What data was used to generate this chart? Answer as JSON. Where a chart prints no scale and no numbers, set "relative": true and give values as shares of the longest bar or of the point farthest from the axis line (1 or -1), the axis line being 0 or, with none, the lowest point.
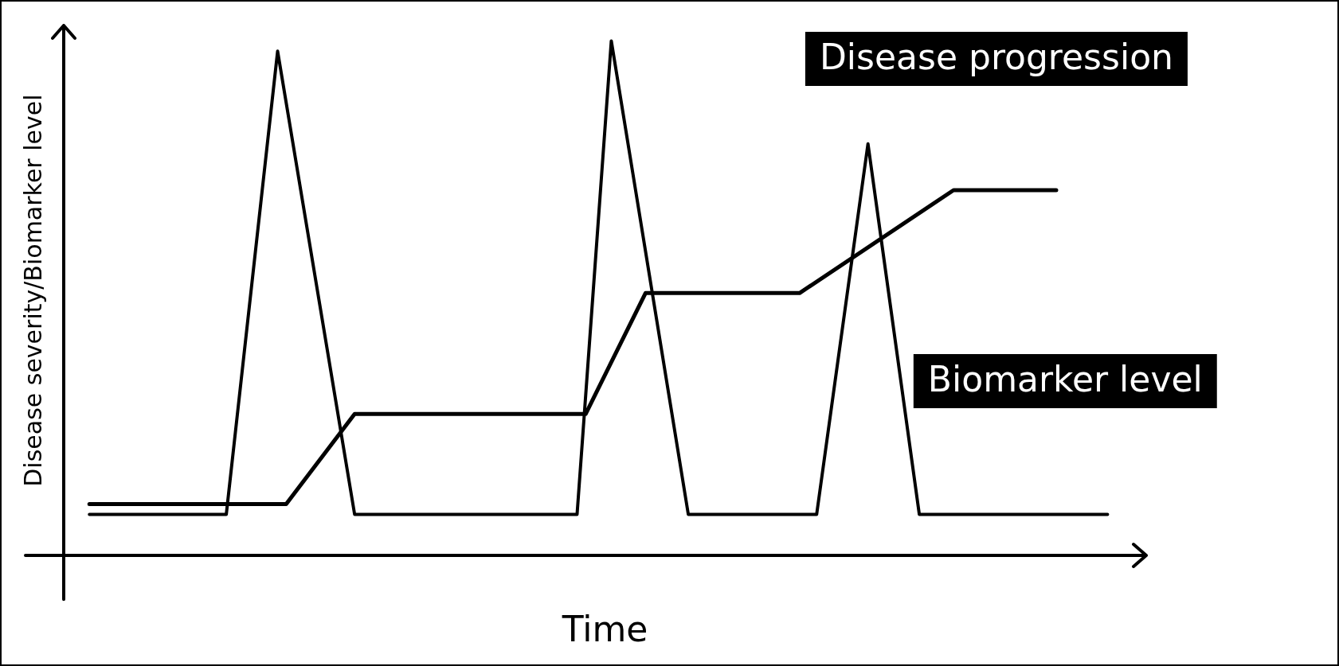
{
  "chart_data": {
    "type": "line",
    "relative": true,
    "xlabel": "Time",
    "ylabel": "Disease severity/Biomarker level",
    "tick_labels": false,
    "grid": false,
    "legend": false,
    "marker": "none",
    "line_style": "solid",
    "categories": [
      null,
      null,
      null,
      null,
      null,
      null,
      null,
      null,
      null,
      null,
      null,
      null,
      null,
      null,
      null,
      null,
      null,
      null,
      null,
      null,
      null,
      null,
      null,
      null,
      null,
      null,
      null,
      null,
      null,
      null,
      null,
      null,
      null,
      null,
      null,
      null,
      null,
      null,
      null,
      null,
      null,
      null,
      null,
      null,
      null,
      null,
      null,
      null,
      null,
      null,
      null,
      null,
      null,
      null,
      null,
      null,
      null,
      null,
      null,
      null,
      null,
      null,
      null,
      null,
      null,
      null,
      null,
      null,
      null,
      null,
      null,
      null,
      null,
      null,
      null,
      null,
      null,
      null,
      null,
      null,
      null,
      null,
      null,
      null,
      null,
      null,
      null,
      null,
      null,
      null,
      null,
      null,
      null,
      null,
      null,
      null,
      null,
      null,
      null,
      null,
      null,
      null,
      null,
      null,
      null,
      null,
      null,
      null,
      null,
      null,
      null,
      null,
      null,
      null,
      null,
      null,
      null,
      null,
      null,
      null
    ],
    "series": [
      {
        "name": "Disease progression",
        "color": "#000000",
        "values": [
          0.08,
          null,
          null,
          null,
          null,
          null,
          null,
          null,
          null,
          null,
          null,
          null,
          null,
          null,
          null,
          null,
          0.08,
          null,
          null,
          null,
          null,
          null,
          0.98,
          null,
          null,
          null,
          null,
          null,
          null,
          null,
          null,
          0.08,
          null,
          null,
          null,
          null,
          null,
          null,
          null,
          null,
          null,
          null,
          null,
          null,
          null,
          null,
          null,
          null,
          null,
          null,
          null,
          null,
          null,
          null,
          null,
          null,
          null,
          0.08,
          null,
          null,
          null,
          1,
          null,
          null,
          null,
          null,
          null,
          null,
          null,
          null,
          0.08,
          null,
          null,
          null,
          null,
          null,
          null,
          null,
          null,
          null,
          null,
          null,
          null,
          null,
          null,
          0.08,
          null,
          null,
          null,
          null,
          null,
          0.8,
          null,
          null,
          null,
          null,
          null,
          0.08,
          null,
          null,
          null,
          null,
          null,
          null,
          null,
          null,
          null,
          null,
          0.08,
          null,
          null,
          null,
          null,
          null,
          null,
          null,
          null,
          null,
          null,
          0.08
        ]
      },
      {
        "name": "Biomarker level",
        "color": "#000000",
        "values": [
          0.1,
          null,
          null,
          null,
          null,
          null,
          null,
          null,
          null,
          null,
          null,
          null,
          null,
          null,
          null,
          null,
          null,
          null,
          null,
          null,
          null,
          null,
          null,
          0.1,
          null,
          null,
          null,
          null,
          null,
          null,
          null,
          0.275,
          null,
          null,
          null,
          null,
          null,
          null,
          null,
          null,
          null,
          null,
          null,
          null,
          null,
          null,
          null,
          null,
          null,
          null,
          null,
          null,
          null,
          null,
          null,
          null,
          null,
          null,
          0.275,
          null,
          null,
          null,
          null,
          null,
          null,
          0.51,
          null,
          null,
          null,
          null,
          null,
          null,
          null,
          null,
          null,
          null,
          null,
          null,
          null,
          null,
          null,
          null,
          null,
          0.51,
          null,
          null,
          null,
          null,
          null,
          null,
          null,
          null,
          null,
          null,
          null,
          null,
          null,
          null,
          null,
          null,
          null,
          0.71,
          null,
          null,
          null,
          null,
          null,
          null,
          null,
          null,
          null,
          null,
          null,
          0.71,
          null,
          null,
          null,
          null,
          null,
          null
        ]
      }
    ]
  }
}
